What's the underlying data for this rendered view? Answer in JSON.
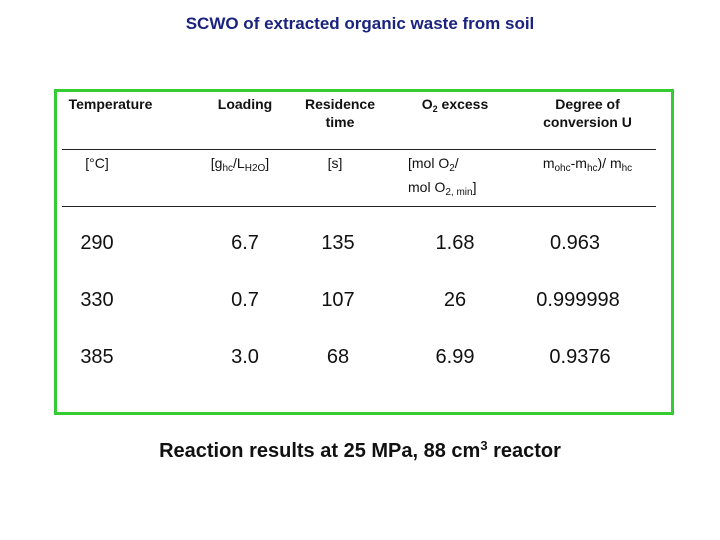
{
  "title": "SCWO of extracted organic waste from soil",
  "headers": {
    "temperature": "Temperature",
    "loading": "Loading",
    "residence_line1": "Residence",
    "residence_line2": "time",
    "o2_prefix": "O",
    "o2_sub": "2",
    "o2_suffix": " excess",
    "degree_line1": "Degree of",
    "degree_line2": "conversion U"
  },
  "units": {
    "temperature": "[°C]",
    "loading_open": "[g",
    "loading_sub1": "hc",
    "loading_mid": "/L",
    "loading_sub2": "H2O",
    "loading_close": "]",
    "residence": "[s]",
    "o2_line1_prefix": "[mol O",
    "o2_line1_sub": "2",
    "o2_line1_suffix": "/",
    "o2_line2_prefix": "mol O",
    "o2_line2_sub": "2, min",
    "o2_line2_suffix": "]",
    "conv_m1": "m",
    "conv_sub1": "ohc",
    "conv_mid": "-m",
    "conv_sub2": "hc",
    "conv_end": ")/ m",
    "conv_sub3": "hc"
  },
  "rows": [
    {
      "temperature": "290",
      "loading": "6.7",
      "residence": "135",
      "o2_excess": "1.68",
      "conversion": "0.963"
    },
    {
      "temperature": "330",
      "loading": "0.7",
      "residence": "107",
      "o2_excess": "26",
      "conversion": "0.999998"
    },
    {
      "temperature": "385",
      "loading": "3.0",
      "residence": "68",
      "o2_excess": "6.99",
      "conversion": "0.9376"
    }
  ],
  "caption": {
    "text": "Reaction results at 25 MPa, 88 cm",
    "sup": "3",
    "suffix": " reactor"
  },
  "colors": {
    "title": "#1a237e",
    "frame": "#33cc33"
  }
}
